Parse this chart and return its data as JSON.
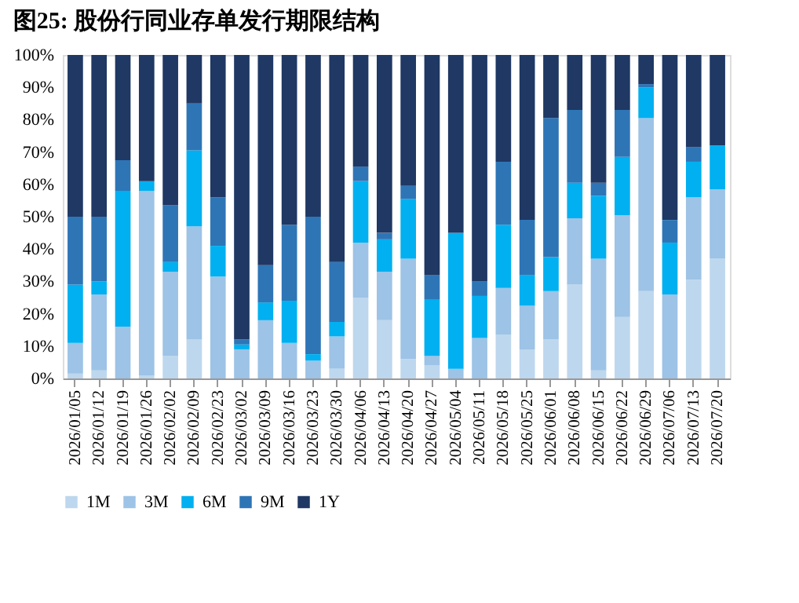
{
  "chart_data": {
    "type": "bar",
    "stacked": true,
    "title": "图25:  股份行同业存单发行期限结构",
    "categories": [
      "2026/01/05",
      "2026/01/12",
      "2026/01/19",
      "2026/01/26",
      "2026/02/02",
      "2026/02/09",
      "2026/02/23",
      "2026/03/02",
      "2026/03/09",
      "2026/03/16",
      "2026/03/23",
      "2026/03/30",
      "2026/04/06",
      "2026/04/13",
      "2026/04/20",
      "2026/04/27",
      "2026/05/04",
      "2026/05/11",
      "2026/05/18",
      "2026/05/25",
      "2026/06/01",
      "2026/06/08",
      "2026/06/15",
      "2026/06/22",
      "2026/06/29",
      "2026/07/06",
      "2026/07/13",
      "2026/07/20"
    ],
    "series": [
      {
        "name": "1M",
        "color": "#bdd7ee",
        "values": [
          1.5,
          2.5,
          0,
          1,
          7,
          12,
          0,
          0,
          0,
          null,
          null,
          3,
          25,
          18,
          6,
          4,
          0,
          0,
          13.5,
          9,
          12,
          29,
          2.5,
          19,
          27,
          0,
          30.5,
          37
        ]
      },
      {
        "name": "3M",
        "color": "#9dc3e6",
        "values": [
          9.5,
          23.5,
          16,
          57,
          26,
          35,
          31.5,
          9,
          18,
          11,
          5.5,
          10,
          17,
          15,
          31,
          3,
          3,
          12.5,
          14.5,
          13.5,
          15,
          20.5,
          34.5,
          31.5,
          53.5,
          26,
          25.5,
          21.5
        ]
      },
      {
        "name": "6M",
        "color": "#00b0f0",
        "values": [
          18,
          4,
          42,
          3,
          3,
          23.5,
          9.5,
          1.5,
          5.5,
          13,
          2,
          4.5,
          19,
          10,
          18.5,
          17.5,
          42,
          13,
          19.5,
          9.5,
          10.5,
          11,
          19.5,
          18,
          9.5,
          16,
          11,
          13.5
        ]
      },
      {
        "name": "9M",
        "color": "#2e75b6",
        "values": [
          21,
          20,
          9.5,
          0,
          17.5,
          14.5,
          15,
          1.5,
          11.5,
          23.5,
          42.5,
          18.5,
          4.5,
          2,
          4,
          7.5,
          0,
          4.5,
          19.5,
          17,
          43,
          22.5,
          4,
          14.5,
          1,
          7,
          4.5,
          0
        ]
      },
      {
        "name": "1Y",
        "color": "#1f3864",
        "values": [
          50,
          50,
          32.5,
          39,
          46.5,
          15,
          44,
          88,
          65,
          52.5,
          50,
          64,
          34.5,
          55,
          40.5,
          68,
          55,
          70,
          33,
          51,
          19.5,
          17,
          39.5,
          17,
          9,
          51,
          28.5,
          28
        ]
      }
    ],
    "ylim": [
      0,
      100
    ],
    "yticks": [
      {
        "value": 0,
        "label": "0%"
      },
      {
        "value": 10,
        "label": "10%"
      },
      {
        "value": 20,
        "label": "20%"
      },
      {
        "value": 30,
        "label": "30%"
      },
      {
        "value": 40,
        "label": "40%"
      },
      {
        "value": 50,
        "label": "50%"
      },
      {
        "value": 60,
        "label": "60%"
      },
      {
        "value": 70,
        "label": "70%"
      },
      {
        "value": 80,
        "label": "80%"
      },
      {
        "value": 90,
        "label": "90%"
      },
      {
        "value": 100,
        "label": "100%"
      }
    ],
    "grid": false,
    "legend": "bottom"
  }
}
